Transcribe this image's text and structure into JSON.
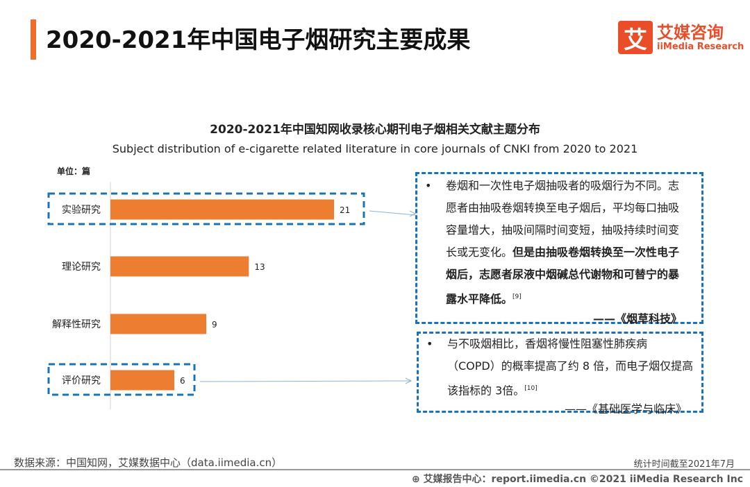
{
  "header": {
    "title": "2020-2021年中国电子烟研究主要成果",
    "logo_mark": "艾",
    "logo_cn": "艾媒咨询",
    "logo_en": "iiMedia Research"
  },
  "chart_data": {
    "type": "bar",
    "orientation": "horizontal",
    "title": "2020-2021年中国知网收录核心期刊电子烟相关文献主题分布",
    "subtitle": "Subject distribution of e-cigarette related literature in core journals of CNKI from 2020 to 2021",
    "unit_label": "单位：篇",
    "categories": [
      "实验研究",
      "理论研究",
      "解释性研究",
      "评价研究"
    ],
    "values": [
      21,
      13,
      9,
      6
    ],
    "highlighted": [
      "实验研究",
      "评价研究"
    ],
    "bar_color": "#ed7d31",
    "highlight_color": "#1a73b8",
    "xlim": [
      0,
      21
    ]
  },
  "notes": [
    {
      "bullet": "•",
      "text_plain": "卷烟和一次性电子烟抽吸者的吸烟行为不同。志愿者由抽吸卷烟转换至电子烟后，平均每口抽吸容量增大，抽吸间隔时间变短，抽吸持续时间变长或无变化。",
      "text_bold": "但是由抽吸卷烟转换至一次性电子烟后，志愿者尿液中烟碱总代谢物和可替宁的暴露水平降低。",
      "ref": "[9]",
      "source": "——《烟草科技》"
    },
    {
      "bullet": "•",
      "text_plain": "与不吸烟相比，香烟将慢性阻塞性肺疾病（COPD）的概率提高了约 8 倍，而电子烟仅提高该指标的 3倍。",
      "text_bold": "",
      "ref": "[10]",
      "source": "——《基础医学与临床》"
    }
  ],
  "footer": {
    "source": "数据来源：中国知网，艾媒数据中心（data.iimedia.cn）",
    "stat_time": "统计时间截至2021年7月",
    "bottom": "艾媒报告中心：report.iimedia.cn  ©2021  iiMedia Research  Inc"
  }
}
